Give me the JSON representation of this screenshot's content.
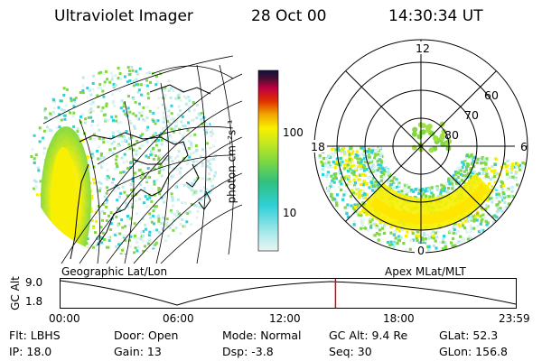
{
  "header": {
    "instrument": "Ultraviolet Imager",
    "date": "28 Oct 00",
    "time": "14:30:34 UT"
  },
  "colorbar": {
    "label": "photon cm⁻²s⁻¹",
    "ticks": [
      "100",
      "10"
    ]
  },
  "polar_plot": {
    "mlt_labels": {
      "top": "12",
      "right": "6",
      "left": "18",
      "bottom": "0"
    },
    "lat_labels": [
      "60",
      "70",
      "80"
    ]
  },
  "projections": {
    "left": "Geographic Lat/Lon",
    "right": "Apex MLat/MLT"
  },
  "timeline": {
    "ylabel": "GC Alt",
    "ymax": "9.0",
    "ymin": "1.8",
    "ticks": [
      "00:00",
      "06:00",
      "12:00",
      "18:00",
      "23:59"
    ],
    "marker_fraction": 0.604
  },
  "info": {
    "filter": "Flt: LBHS",
    "ip": "IP: 18.0",
    "door": "Door: Open",
    "gain": "Gain: 13",
    "mode": "Mode: Normal",
    "dsp": "Dsp:     -3.8",
    "gc_alt": "GC Alt: 9.4 Re",
    "seq": "Seq: 30",
    "glat": "GLat:  52.3",
    "glon": "GLon: 156.8"
  },
  "colors": {
    "low": "#b8ecec",
    "cyan": "#30d0d8",
    "green": "#80d840",
    "yellow": "#f8f000",
    "orange": "#f0a000",
    "red": "#d00020",
    "top": "#101040",
    "marker": "#e00000"
  }
}
